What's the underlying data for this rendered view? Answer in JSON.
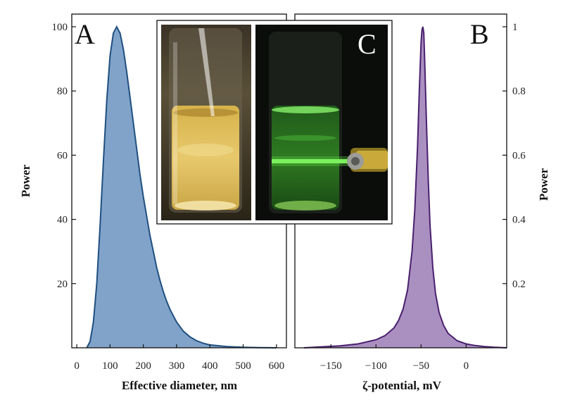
{
  "figure": {
    "panel_a_letter": "A",
    "panel_b_letter": "B",
    "panel_c_letter": "C"
  },
  "chart_data": [
    {
      "type": "area",
      "panel": "A",
      "xlabel": "Effective diameter, nm",
      "ylabel": "Power",
      "xlim": [
        -15,
        630
      ],
      "ylim": [
        0,
        100
      ],
      "xticks": [
        0,
        100,
        200,
        300,
        400,
        500,
        600
      ],
      "yticks": [
        20,
        40,
        60,
        80,
        100
      ],
      "fill_color": "#6b93bf",
      "line_color": "#1f4f80",
      "series": [
        {
          "x": [
            30,
            40,
            50,
            60,
            70,
            80,
            90,
            100,
            110,
            120,
            130,
            140,
            150,
            160,
            170,
            180,
            190,
            200,
            210,
            220,
            230,
            240,
            250,
            260,
            270,
            280,
            290,
            300,
            320,
            340,
            360,
            380,
            400,
            450,
            500,
            550,
            600
          ],
          "y": [
            0,
            2,
            8,
            20,
            38,
            58,
            77,
            91,
            98,
            100,
            98,
            93,
            86,
            78,
            70,
            62,
            54,
            47,
            41,
            35,
            30,
            25,
            21,
            17.5,
            14.5,
            12,
            10,
            8,
            5.2,
            3.4,
            2.2,
            1.4,
            0.9,
            0.4,
            0.15,
            0.05,
            0
          ]
        }
      ]
    },
    {
      "type": "area",
      "panel": "B",
      "xlabel": "ζ-potential, mV",
      "ylabel": "Power",
      "xlim": [
        -190,
        45
      ],
      "ylim": [
        0,
        1
      ],
      "xticks": [
        -150,
        -100,
        -50,
        0
      ],
      "xtick_labels": [
        "−150",
        "−100",
        "−50",
        "0"
      ],
      "yticks": [
        0.2,
        0.4,
        0.6,
        0.8,
        1
      ],
      "ytick_labels": [
        "0.2",
        "0.4",
        "0.6",
        "0.8",
        "1"
      ],
      "fill_color": "#9b7cb5",
      "line_color": "#4a1f6e",
      "series": [
        {
          "x": [
            -180,
            -160,
            -140,
            -120,
            -100,
            -90,
            -80,
            -75,
            -70,
            -65,
            -60,
            -57,
            -54,
            -52,
            -50,
            -49,
            -48,
            -47,
            -46,
            -44,
            -42,
            -40,
            -37,
            -34,
            -30,
            -25,
            -20,
            -10,
            0,
            10,
            20,
            30,
            45
          ],
          "y": [
            0,
            0.003,
            0.006,
            0.012,
            0.025,
            0.038,
            0.062,
            0.085,
            0.12,
            0.18,
            0.3,
            0.43,
            0.62,
            0.8,
            0.95,
            0.99,
            1,
            0.98,
            0.9,
            0.7,
            0.52,
            0.38,
            0.25,
            0.17,
            0.11,
            0.07,
            0.045,
            0.022,
            0.012,
            0.007,
            0.004,
            0.002,
            0
          ]
        }
      ]
    }
  ]
}
